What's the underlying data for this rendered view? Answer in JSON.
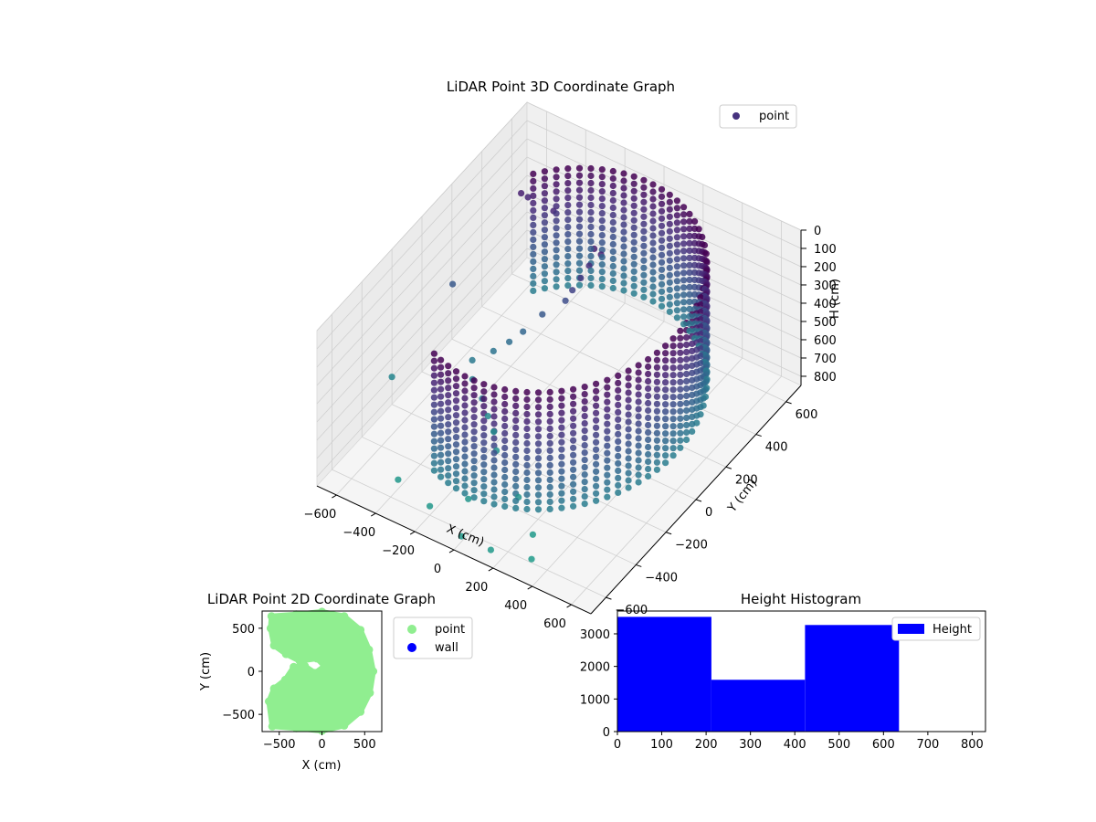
{
  "chart_data": [
    {
      "type": "scatter",
      "projection": "3d",
      "title": "LiDAR Point 3D Coordinate Graph",
      "xlabel": "X (cm)",
      "ylabel": "Y (cm)",
      "zlabel": "H (cm)",
      "xlim": [
        -700,
        700
      ],
      "ylim": [
        -700,
        700
      ],
      "zlim": [
        0,
        850
      ],
      "z_inverted": true,
      "x_ticks": [
        -600,
        -400,
        -200,
        0,
        200,
        400,
        600
      ],
      "y_ticks": [
        -600,
        -400,
        -200,
        0,
        200,
        400,
        600
      ],
      "z_ticks": [
        0,
        100,
        200,
        300,
        400,
        500,
        600,
        700,
        800
      ],
      "grid": true,
      "colormap": "viridis",
      "legend": {
        "position": "upper-right",
        "entries": [
          {
            "label": "point",
            "color": "#46327e"
          }
        ]
      },
      "series": [
        {
          "name": "point",
          "description_shape": "half-cylinder wall of radius ~600 cm spanning heights 0-650 cm plus scattered interior and outlier points",
          "wall_radius": 600,
          "wall_angle_range_deg": [
            -110,
            140
          ],
          "wall_height_range": [
            0,
            650
          ],
          "cluster_points": [
            [
              -50,
              300,
              120
            ],
            [
              -30,
              320,
              160
            ],
            [
              -60,
              280,
              200
            ],
            [
              -80,
              250,
              250
            ],
            [
              -100,
              220,
              300
            ],
            [
              -120,
              200,
              350
            ],
            [
              -200,
              150,
              420
            ],
            [
              -260,
              100,
              500
            ],
            [
              -300,
              60,
              540
            ],
            [
              -350,
              20,
              580
            ],
            [
              -420,
              -30,
              620
            ],
            [
              -380,
              -80,
              660
            ],
            [
              -300,
              -120,
              690
            ],
            [
              -240,
              -160,
              720
            ],
            [
              -180,
              -200,
              740
            ],
            [
              -120,
              -260,
              760
            ]
          ],
          "outliers": [
            [
              -620,
              100,
              420
            ],
            [
              -700,
              -200,
              700
            ],
            [
              -500,
              400,
              130
            ],
            [
              -480,
              420,
              160
            ],
            [
              -350,
              420,
              170
            ],
            [
              -400,
              -550,
              800
            ],
            [
              -200,
              -600,
              800
            ],
            [
              0,
              -650,
              820
            ],
            [
              150,
              -650,
              820
            ],
            [
              320,
              -600,
              830
            ],
            [
              250,
              -500,
              820
            ],
            [
              100,
              -400,
              780
            ],
            [
              -80,
              -500,
              790
            ]
          ]
        }
      ]
    },
    {
      "type": "scatter",
      "title": "LiDAR Point 2D Coordinate Graph",
      "xlabel": "X (cm)",
      "ylabel": "Y (cm)",
      "xlim": [
        -700,
        700
      ],
      "ylim": [
        -700,
        700
      ],
      "x_ticks": [
        -500,
        0,
        500
      ],
      "y_ticks": [
        -500,
        0,
        500
      ],
      "legend": {
        "position": "outside-right",
        "entries": [
          {
            "label": "point",
            "color": "#90ee90"
          },
          {
            "label": "wall",
            "color": "#0000ff"
          }
        ]
      },
      "series": [
        {
          "name": "point",
          "color": "#90ee90",
          "filled_region_outline": [
            [
              -590,
              640
            ],
            [
              -300,
              660
            ],
            [
              0,
              690
            ],
            [
              260,
              640
            ],
            [
              450,
              480
            ],
            [
              550,
              250
            ],
            [
              600,
              0
            ],
            [
              560,
              -250
            ],
            [
              450,
              -470
            ],
            [
              260,
              -630
            ],
            [
              0,
              -690
            ],
            [
              -300,
              -660
            ],
            [
              -580,
              -640
            ],
            [
              -620,
              -350
            ],
            [
              -560,
              -200
            ],
            [
              -430,
              -100
            ],
            [
              -330,
              50
            ],
            [
              -200,
              60
            ],
            [
              -80,
              -20
            ],
            [
              30,
              60
            ],
            [
              -60,
              150
            ],
            [
              -260,
              120
            ],
            [
              -420,
              200
            ],
            [
              -560,
              300
            ],
            [
              -600,
              500
            ]
          ]
        },
        {
          "name": "wall",
          "color": "#0000ff",
          "points": []
        }
      ]
    },
    {
      "type": "histogram",
      "title": "Height Histogram",
      "xlabel": "",
      "ylabel": "",
      "xlim": [
        0,
        830
      ],
      "ylim": [
        0,
        3700
      ],
      "x_ticks": [
        0,
        100,
        200,
        300,
        400,
        500,
        600,
        700,
        800
      ],
      "y_ticks": [
        0,
        1000,
        2000,
        3000
      ],
      "legend": {
        "position": "upper-right",
        "entries": [
          {
            "label": "Height",
            "color": "#0000ff"
          }
        ]
      },
      "series": [
        {
          "name": "Height",
          "color": "#0000ff",
          "bins": [
            {
              "x0": 0,
              "x1": 212,
              "count": 3520
            },
            {
              "x0": 212,
              "x1": 423,
              "count": 1590
            },
            {
              "x0": 423,
              "x1": 635,
              "count": 3270
            }
          ]
        }
      ]
    }
  ]
}
